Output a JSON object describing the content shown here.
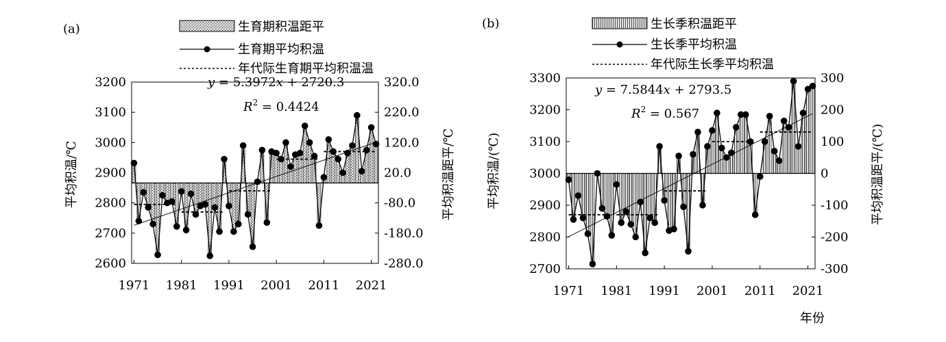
{
  "chart_data": [
    {
      "panel_label": "(a)",
      "type": "bar+line",
      "legend": [
        "生育期积温距平",
        "生育期平均积温",
        "年代际生育期平均积温温"
      ],
      "equation": {
        "prefix": "y",
        "rest": " = 5.3972",
        "xvar": "x",
        "tail": " + 2720.3"
      },
      "r2": {
        "r": "R",
        "sup": "2",
        "rest": " = 0.4424"
      },
      "ylabel": "平均积温/℃",
      "y2label": "平均积温距平/℃",
      "xlabel": "",
      "ylim": [
        2600,
        3200
      ],
      "y2lim": [
        -280,
        320
      ],
      "y_ticks": [
        "2600",
        "2700",
        "2800",
        "2900",
        "3000",
        "3100",
        "3200"
      ],
      "y2_ticks": [
        "-280.0",
        "-180.0",
        "-80.0",
        "20.0",
        "120.0",
        "220.0",
        "320.0"
      ],
      "x_ticks": [
        "1971",
        "1981",
        "1991",
        "2001",
        "2011",
        "2021"
      ],
      "xlim": [
        1970.5,
        2022.5
      ],
      "mean": 2866,
      "x": [
        1971,
        1972,
        1973,
        1974,
        1975,
        1976,
        1977,
        1978,
        1979,
        1980,
        1981,
        1982,
        1983,
        1984,
        1985,
        1986,
        1987,
        1988,
        1989,
        1990,
        1991,
        1992,
        1993,
        1994,
        1995,
        1996,
        1997,
        1998,
        1999,
        2000,
        2001,
        2002,
        2003,
        2004,
        2005,
        2006,
        2007,
        2008,
        2009,
        2010,
        2011,
        2012,
        2013,
        2014,
        2015,
        2016,
        2017,
        2018,
        2019,
        2020,
        2021,
        2022
      ],
      "values": [
        2932,
        2740,
        2835,
        2785,
        2730,
        2628,
        2825,
        2800,
        2805,
        2722,
        2838,
        2710,
        2830,
        2762,
        2790,
        2795,
        2625,
        2785,
        2705,
        2945,
        2790,
        2705,
        2730,
        2990,
        2762,
        2655,
        2870,
        2975,
        2735,
        2970,
        2965,
        2945,
        3000,
        2920,
        2960,
        2965,
        3055,
        3000,
        2955,
        2725,
        2885,
        3010,
        2970,
        2945,
        2900,
        2965,
        2990,
        3090,
        2905,
        2975,
        3050,
        2995
      ],
      "decadal": [
        {
          "from": 1971,
          "to": 1980,
          "value": 2795
        },
        {
          "from": 1981,
          "to": 1990,
          "value": 2770
        },
        {
          "from": 1991,
          "to": 2000,
          "value": 2840
        },
        {
          "from": 2001,
          "to": 2010,
          "value": 2945
        },
        {
          "from": 2011,
          "to": 2022,
          "value": 2970
        }
      ],
      "trend": {
        "slope": 5.3972,
        "intercept": 2720.3
      }
    },
    {
      "panel_label": "(b)",
      "type": "bar+line",
      "legend": [
        "生长季积温距平",
        "生长季平均积温",
        "年代际生长季平均积温"
      ],
      "equation": {
        "prefix": "y",
        "rest": " = 7.5844",
        "xvar": "x",
        "tail": " + 2793.5"
      },
      "r2": {
        "r": "R",
        "sup": "2",
        "rest": " = 0.567"
      },
      "ylabel": "平均积温/(℃)",
      "y2label": "平均积温距平/(℃)",
      "xlabel": "年份",
      "ylim": [
        2700,
        3300
      ],
      "y2lim": [
        -300,
        300
      ],
      "y_ticks": [
        "2700",
        "2800",
        "2900",
        "3000",
        "3100",
        "3200",
        "3300"
      ],
      "y2_ticks": [
        "-300",
        "-200",
        "-100",
        "0",
        "100",
        "200",
        "300"
      ],
      "x_ticks": [
        "1971",
        "1981",
        "1991",
        "2001",
        "2011",
        "2021"
      ],
      "xlim": [
        1970.5,
        2022.5
      ],
      "mean": 3000,
      "x": [
        1971,
        1972,
        1973,
        1974,
        1975,
        1976,
        1977,
        1978,
        1979,
        1980,
        1981,
        1982,
        1983,
        1984,
        1985,
        1986,
        1987,
        1988,
        1989,
        1990,
        1991,
        1992,
        1993,
        1994,
        1995,
        1996,
        1997,
        1998,
        1999,
        2000,
        2001,
        2002,
        2003,
        2004,
        2005,
        2006,
        2007,
        2008,
        2009,
        2010,
        2011,
        2012,
        2013,
        2014,
        2015,
        2016,
        2017,
        2018,
        2019,
        2020,
        2021,
        2022
      ],
      "values": [
        2980,
        2855,
        2930,
        2860,
        2810,
        2715,
        3000,
        2890,
        2865,
        2805,
        2965,
        2845,
        2880,
        2840,
        2800,
        2910,
        2750,
        2860,
        2845,
        3085,
        2915,
        2820,
        2825,
        3055,
        2895,
        2755,
        3060,
        3130,
        2900,
        3085,
        3135,
        3190,
        3080,
        3050,
        3065,
        3145,
        3185,
        3185,
        3100,
        2870,
        2990,
        3100,
        3180,
        3070,
        3040,
        3165,
        3145,
        3290,
        3085,
        3190,
        3265,
        3275
      ],
      "decadal": [
        {
          "from": 1971,
          "to": 1980,
          "value": 2870
        },
        {
          "from": 1981,
          "to": 1990,
          "value": 2870
        },
        {
          "from": 1991,
          "to": 2000,
          "value": 2945
        },
        {
          "from": 2001,
          "to": 2010,
          "value": 3100
        },
        {
          "from": 2011,
          "to": 2022,
          "value": 3130
        }
      ],
      "trend": {
        "slope": 7.5844,
        "intercept": 2793.5
      }
    }
  ]
}
